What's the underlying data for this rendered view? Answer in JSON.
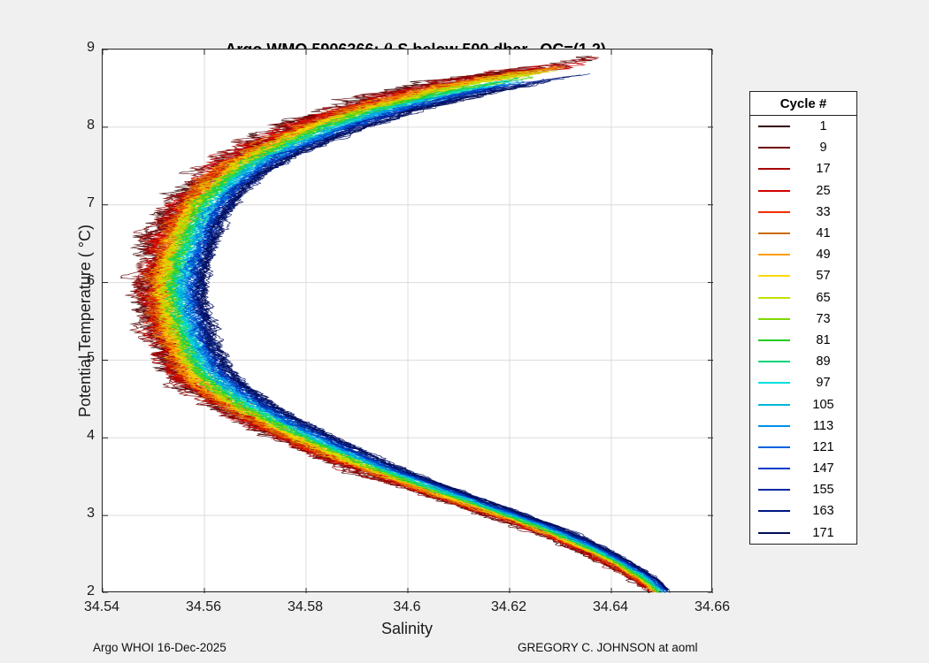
{
  "figure": {
    "title_pre": "Argo WMO 5906366: ",
    "title_theta": "θ",
    "title_post": "-S below 500 dbar,  QC=(1,2)",
    "footer_left": "Argo WHOI 16-Dec-2025",
    "footer_right": "GREGORY C. JOHNSON at aoml"
  },
  "chart_data": {
    "type": "line",
    "title": "Argo WMO 5906366: θ-S below 500 dbar,  QC=(1,2)",
    "xlabel": "Salinity",
    "ylabel": "Potential Temperature ( °C)",
    "xlim": [
      34.54,
      34.66
    ],
    "ylim": [
      2,
      9
    ],
    "xticks": [
      34.54,
      34.56,
      34.58,
      34.6,
      34.62,
      34.64,
      34.66
    ],
    "xtick_labels": [
      "34.54",
      "34.56",
      "34.58",
      "34.6",
      "34.62",
      "34.64",
      "34.66"
    ],
    "yticks": [
      2,
      3,
      4,
      5,
      6,
      7,
      8,
      9
    ],
    "ytick_labels": [
      "2",
      "3",
      "4",
      "5",
      "6",
      "7",
      "8",
      "9"
    ],
    "grid": true,
    "grid_color": "#dcdcdc",
    "axis_color": "#222222",
    "legend": {
      "title": "Cycle #",
      "position": "right-outside"
    },
    "base_profile": {
      "theta": [
        2.0,
        2.4,
        2.8,
        3.2,
        3.6,
        4.0,
        4.4,
        4.8,
        5.2,
        5.6,
        6.0,
        6.4,
        6.8,
        7.2,
        7.6,
        8.0,
        8.3,
        8.6,
        8.9
      ],
      "salinity": [
        34.6495,
        34.641,
        34.628,
        34.611,
        34.594,
        34.58,
        34.5685,
        34.56,
        34.5565,
        34.5545,
        34.554,
        34.5555,
        34.558,
        34.5625,
        34.5705,
        34.5835,
        34.598,
        34.618,
        34.645
      ]
    },
    "series": [
      {
        "cycle": "1",
        "color": "#330000",
        "offset": -0.006,
        "theta_max": 8.82,
        "noise": 0.0036
      },
      {
        "cycle": "9",
        "color": "#6e0000",
        "offset": -0.0054,
        "theta_max": 8.86,
        "noise": 0.0033
      },
      {
        "cycle": "17",
        "color": "#a80000",
        "offset": -0.0047,
        "theta_max": 8.8,
        "noise": 0.003
      },
      {
        "cycle": "25",
        "color": "#d40000",
        "offset": -0.0041,
        "theta_max": 8.76,
        "noise": 0.0028
      },
      {
        "cycle": "33",
        "color": "#f03000",
        "offset": -0.0035,
        "theta_max": 8.72,
        "noise": 0.0026
      },
      {
        "cycle": "41",
        "color": "#cc6a00",
        "offset": -0.0028,
        "theta_max": 8.7,
        "noise": 0.0024
      },
      {
        "cycle": "49",
        "color": "#ff9d00",
        "offset": -0.0022,
        "theta_max": 8.74,
        "noise": 0.0022
      },
      {
        "cycle": "57",
        "color": "#ffd900",
        "offset": -0.0016,
        "theta_max": 8.68,
        "noise": 0.0021
      },
      {
        "cycle": "65",
        "color": "#c2e000",
        "offset": -0.0009,
        "theta_max": 8.66,
        "noise": 0.002
      },
      {
        "cycle": "73",
        "color": "#7fd800",
        "offset": -0.0003,
        "theta_max": 8.62,
        "noise": 0.0019
      },
      {
        "cycle": "81",
        "color": "#23cc23",
        "offset": 0.0003,
        "theta_max": 8.6,
        "noise": 0.0018
      },
      {
        "cycle": "89",
        "color": "#00d478",
        "offset": 0.0009,
        "theta_max": 8.58,
        "noise": 0.0017
      },
      {
        "cycle": "97",
        "color": "#00e0e0",
        "offset": 0.0016,
        "theta_max": 8.55,
        "noise": 0.0016
      },
      {
        "cycle": "105",
        "color": "#00b4dc",
        "offset": 0.0022,
        "theta_max": 8.52,
        "noise": 0.0016
      },
      {
        "cycle": "113",
        "color": "#0090e8",
        "offset": 0.0028,
        "theta_max": 8.5,
        "noise": 0.0015
      },
      {
        "cycle": "121",
        "color": "#0062e0",
        "offset": 0.0035,
        "theta_max": 8.54,
        "noise": 0.0015
      },
      {
        "cycle": "147",
        "color": "#003cc8",
        "offset": 0.0041,
        "theta_max": 8.52,
        "noise": 0.0014
      },
      {
        "cycle": "155",
        "color": "#0028a0",
        "offset": 0.0047,
        "theta_max": 8.56,
        "noise": 0.0014
      },
      {
        "cycle": "163",
        "color": "#001680",
        "offset": 0.0054,
        "theta_max": 8.6,
        "noise": 0.0013
      },
      {
        "cycle": "171",
        "color": "#000c58",
        "offset": 0.006,
        "theta_max": 8.57,
        "noise": 0.0013
      }
    ]
  }
}
